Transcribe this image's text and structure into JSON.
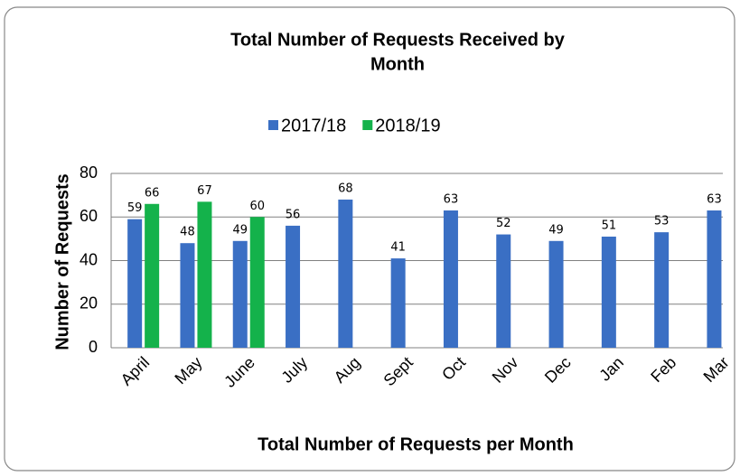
{
  "chart_data": {
    "type": "bar",
    "title_lines": [
      "Total Number of Requests Received by",
      "Month"
    ],
    "x_label": "Total Number of Requests per Month",
    "y_label": "Number of Requests",
    "categories": [
      "April",
      "May",
      "June",
      "July",
      "Aug",
      "Sept",
      "Oct",
      "Nov",
      "Dec",
      "Jan",
      "Feb",
      "Mar"
    ],
    "series": [
      {
        "name": "2017/18",
        "color": "#3a6fc4",
        "values": [
          59,
          48,
          49,
          56,
          68,
          41,
          63,
          52,
          49,
          51,
          53,
          63
        ]
      },
      {
        "name": "2018/19",
        "color": "#14b24b",
        "values": [
          66,
          67,
          60,
          null,
          null,
          null,
          null,
          null,
          null,
          null,
          null,
          null
        ]
      }
    ],
    "ylim": [
      0,
      80
    ],
    "yticks": [
      0,
      20,
      40,
      60,
      80
    ],
    "grid": true,
    "legend": "top",
    "data_labels": true
  }
}
